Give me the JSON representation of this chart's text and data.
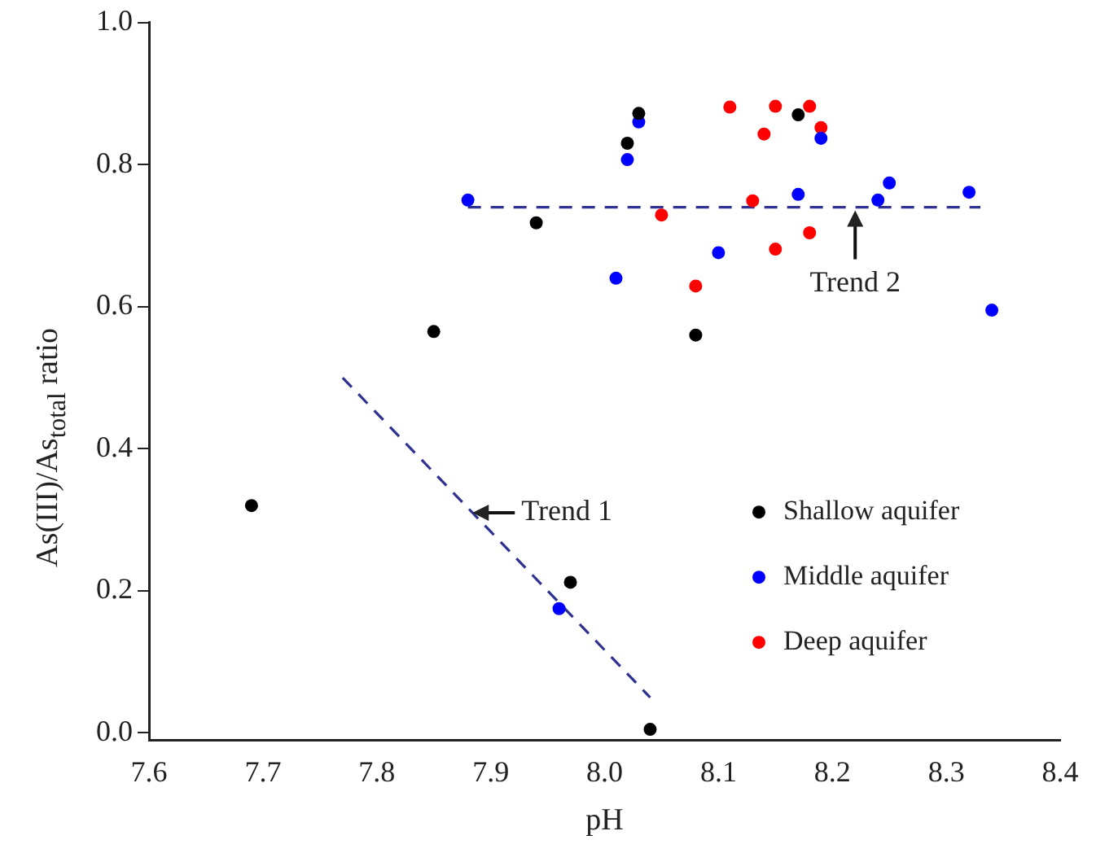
{
  "chart_data": {
    "type": "scatter",
    "xlabel": "pH",
    "ylabel": "As(III)/As$_{total}$ ratio",
    "xlim": [
      7.6,
      8.4
    ],
    "ylim": [
      -0.01,
      1.0
    ],
    "xticks": [
      7.6,
      7.7,
      7.8,
      7.9,
      {
        "value": 8.0,
        "label": "8.0"
      },
      8.1,
      8.2,
      8.3,
      8.4
    ],
    "yticks": [
      {
        "value": 0,
        "label": "0.0"
      },
      0.2,
      0.4,
      0.6,
      0.8,
      {
        "value": 1.0,
        "label": "1.0"
      }
    ],
    "grid": false,
    "legend": "bottom right",
    "marker": "circle",
    "series": [
      {
        "name": "Shallow aquifer",
        "color": "#000000",
        "x": [
          7.69,
          7.85,
          7.94,
          8.02,
          8.03,
          7.97,
          8.04,
          8.17,
          8.08
        ],
        "values": [
          0.32,
          0.565,
          0.718,
          0.83,
          0.872,
          0.212,
          0.005,
          0.87,
          0.56
        ]
      },
      {
        "name": "Middle aquifer",
        "color": "#0000ff",
        "x": [
          7.88,
          8.02,
          8.03,
          8.01,
          7.96,
          8.1,
          8.17,
          8.19,
          8.24,
          8.25,
          8.32,
          8.34
        ],
        "values": [
          0.75,
          0.807,
          0.86,
          0.64,
          0.175,
          0.676,
          0.758,
          0.837,
          0.75,
          0.774,
          0.761,
          0.595
        ]
      },
      {
        "name": "Deep aquifer",
        "color": "#ff0000",
        "x": [
          8.05,
          8.11,
          8.15,
          8.18,
          8.14,
          8.19,
          8.13,
          8.18,
          8.15,
          8.08
        ],
        "values": [
          0.729,
          0.881,
          0.882,
          0.882,
          0.843,
          0.852,
          0.749,
          0.704,
          0.681,
          0.629
        ]
      },
      {
        "type": "line",
        "color": "#2e3192",
        "line_style": "dashed",
        "marker": "none",
        "x": [
          7.77,
          8.04
        ],
        "values": [
          0.5,
          0.05
        ]
      },
      {
        "type": "line",
        "color": "#2e3192",
        "line_style": "dashed",
        "marker": "none",
        "x": [
          7.88,
          8.33
        ],
        "values": [
          0.74,
          0.74
        ]
      }
    ],
    "annotations": [
      {
        "text": "Trend 1",
        "x": 7.884,
        "y": 0.31
      },
      {
        "text": "Trend 2",
        "x": 8.22,
        "y": 0.74
      }
    ]
  }
}
